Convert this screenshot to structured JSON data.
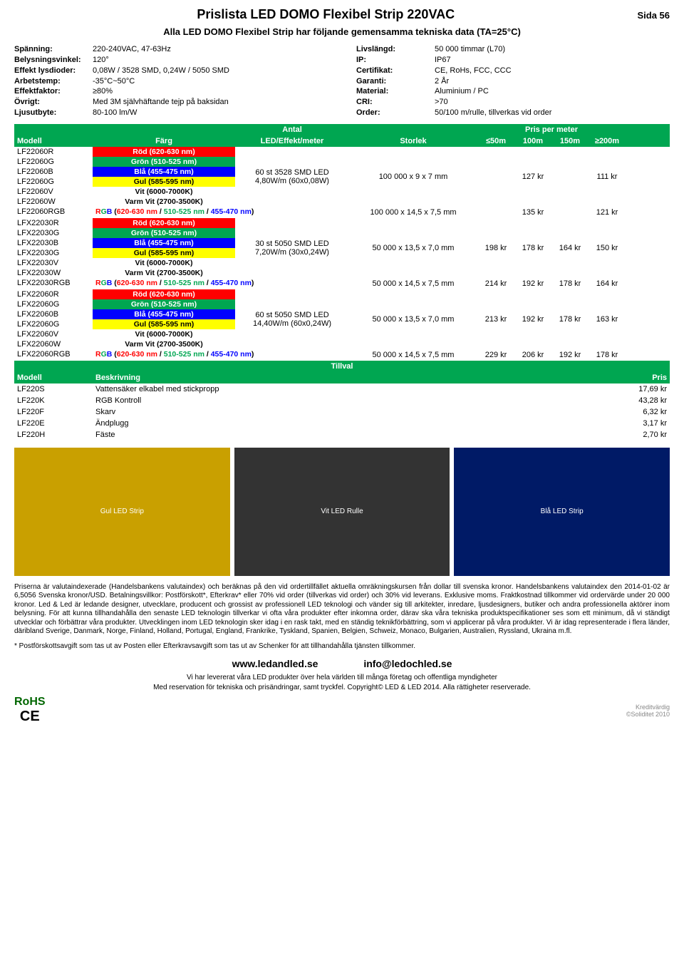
{
  "header": {
    "title": "Prislista LED DOMO Flexibel Strip 220VAC",
    "sida": "Sida 56",
    "subtitle": "Alla LED DOMO Flexibel Strip har följande gemensamma tekniska data (TA=25°C)"
  },
  "specs_left": [
    {
      "label": "Spänning:",
      "value": "220-240VAC, 47-63Hz"
    },
    {
      "label": "Belysningsvinkel:",
      "value": "120°"
    },
    {
      "label": "Effekt lysdioder:",
      "value": "0,08W / 3528 SMD, 0,24W / 5050 SMD"
    },
    {
      "label": "Arbetstemp:",
      "value": "-35°C~50°C"
    },
    {
      "label": "Effektfaktor:",
      "value": "≥80%"
    },
    {
      "label": "Övrigt:",
      "value": "Med 3M självhäftande tejp på baksidan"
    },
    {
      "label": "Ljusutbyte:",
      "value": "80-100 lm/W"
    }
  ],
  "specs_right": [
    {
      "label": "Livslängd:",
      "value": "50 000 timmar (L70)"
    },
    {
      "label": "IP:",
      "value": "IP67"
    },
    {
      "label": "Certifikat:",
      "value": "CE, RoHs, FCC, CCC"
    },
    {
      "label": "Garanti:",
      "value": "2 År"
    },
    {
      "label": "Material:",
      "value": "Aluminium / PC"
    },
    {
      "label": "CRI:",
      "value": ">70"
    },
    {
      "label": "Order:",
      "value": "50/100 m/rulle, tillverkas vid order"
    }
  ],
  "table_headers": {
    "antal": "Antal",
    "ppm": "Pris per meter",
    "modell": "Modell",
    "farg": "Färg",
    "led": "LED/Effekt/meter",
    "storlek": "Storlek",
    "p50": "≤50m",
    "p100": "100m",
    "p150": "150m",
    "p200": "≥200m"
  },
  "colors": {
    "red": {
      "bg": "#ff0000",
      "fg": "#ffffff"
    },
    "green": {
      "bg": "#00a651",
      "fg": "#ffffff"
    },
    "blue": {
      "bg": "#0000ff",
      "fg": "#ffffff"
    },
    "yellow": {
      "bg": "#ffff00",
      "fg": "#000000"
    },
    "white": {
      "bg": "#ffffff",
      "fg": "#000000"
    },
    "warmwhite": {
      "bg": "#ffffff",
      "fg": "#000000"
    }
  },
  "groups": [
    {
      "rows": [
        {
          "model": "LF22060R",
          "color": "red",
          "label": "Röd (620-630 nm)"
        },
        {
          "model": "LF22060G",
          "color": "green",
          "label": "Grön (510-525 nm)"
        },
        {
          "model": "LF22060B",
          "color": "blue",
          "label": "Blå (455-475 nm)"
        },
        {
          "model": "LF22060G",
          "color": "yellow",
          "label": "Gul (585-595 nm)"
        },
        {
          "model": "LF22060V",
          "color": "white",
          "label": "Vit (6000-7000K)"
        },
        {
          "model": "LF22060W",
          "color": "warmwhite",
          "label": "Varm Vit (2700-3500K)"
        }
      ],
      "effekt_l1": "60 st 3528 SMD LED",
      "effekt_l2": "4,80W/m (60x0,08W)",
      "storlek": "100 000 x 9 x 7 mm",
      "prices": {
        "p50": "",
        "p100": "127 kr",
        "p150": "",
        "p200": "111 kr"
      },
      "rgb": {
        "model": "LF22060RGB",
        "label": "RGB (620-630 nm / 510-525 nm / 455-470 nm)",
        "storlek": "100 000 x 14,5 x 7,5  mm",
        "prices": {
          "p50": "",
          "p100": "135 kr",
          "p150": "",
          "p200": "121 kr"
        }
      }
    },
    {
      "rows": [
        {
          "model": "LFX22030R",
          "color": "red",
          "label": "Röd (620-630 nm)"
        },
        {
          "model": "LFX22030G",
          "color": "green",
          "label": "Grön (510-525 nm)"
        },
        {
          "model": "LFX22030B",
          "color": "blue",
          "label": "Blå (455-475 nm)"
        },
        {
          "model": "LFX22030G",
          "color": "yellow",
          "label": "Gul (585-595 nm)"
        },
        {
          "model": "LFX22030V",
          "color": "white",
          "label": "Vit (6000-7000K)"
        },
        {
          "model": "LFX22030W",
          "color": "warmwhite",
          "label": "Varm Vit (2700-3500K)"
        }
      ],
      "effekt_l1": "30 st 5050 SMD LED",
      "effekt_l2": "7,20W/m (30x0,24W)",
      "storlek": "50 000 x 13,5 x 7,0 mm",
      "prices": {
        "p50": "198 kr",
        "p100": "178 kr",
        "p150": "164 kr",
        "p200": "150 kr"
      },
      "rgb": {
        "model": "LFX22030RGB",
        "label": "RGB (620-630 nm / 510-525 nm / 455-470 nm)",
        "storlek": "50 000 x 14,5 x 7,5 mm",
        "prices": {
          "p50": "214 kr",
          "p100": "192 kr",
          "p150": "178 kr",
          "p200": "164 kr"
        }
      }
    },
    {
      "rows": [
        {
          "model": "LFX22060R",
          "color": "red",
          "label": "Röd (620-630 nm)"
        },
        {
          "model": "LFX22060G",
          "color": "green",
          "label": "Grön (510-525 nm)"
        },
        {
          "model": "LFX22060B",
          "color": "blue",
          "label": "Blå (455-475 nm)"
        },
        {
          "model": "LFX22060G",
          "color": "yellow",
          "label": "Gul (585-595 nm)"
        },
        {
          "model": "LFX22060V",
          "color": "white",
          "label": "Vit (6000-7000K)"
        },
        {
          "model": "LFX22060W",
          "color": "warmwhite",
          "label": "Varm Vit (2700-3500K)"
        }
      ],
      "effekt_l1": "60 st 5050 SMD LED",
      "effekt_l2": "14,40W/m (60x0,24W)",
      "storlek": "50 000 x 13,5 x 7,0 mm",
      "prices": {
        "p50": "213 kr",
        "p100": "192 kr",
        "p150": "178 kr",
        "p200": "163 kr"
      },
      "rgb": {
        "model": "LFX22060RGB",
        "label": "RGB (620-630 nm / 510-525 nm / 455-470 nm)",
        "storlek": "50 000 x 14,5 x 7,5 mm",
        "prices": {
          "p50": "229 kr",
          "p100": "206 kr",
          "p150": "192 kr",
          "p200": "178 kr"
        }
      }
    }
  ],
  "tillval": {
    "title": "Tillval",
    "modell": "Modell",
    "beskrivning": "Beskrivning",
    "pris": "Pris",
    "rows": [
      {
        "model": "LF220S",
        "desc": "Vattensäker elkabel med stickpropp",
        "pris": "17,69 kr"
      },
      {
        "model": "LF220K",
        "desc": "RGB Kontroll",
        "pris": "43,28 kr"
      },
      {
        "model": "LF220F",
        "desc": "Skarv",
        "pris": "6,32 kr"
      },
      {
        "model": "LF220E",
        "desc": "Ändplugg",
        "pris": "3,17 kr"
      },
      {
        "model": "LF220H",
        "desc": "Fäste",
        "pris": "2,70 kr"
      }
    ]
  },
  "images": [
    {
      "bg": "#c9a000",
      "label": "Gul LED Strip"
    },
    {
      "bg": "#333333",
      "label": "Vit LED Rulle"
    },
    {
      "bg": "#001a66",
      "label": "Blå LED Strip"
    }
  ],
  "fine1": "Priserna är valutaindexerade (Handelsbankens valutaindex) och beräknas på den vid ordertillfället aktuella omräkningskursen från dollar till svenska kronor. Handelsbankens valutaindex den 2014-01-02 är 6,5056 Svenska kronor/USD. Betalningsvillkor: Postförskott*, Efterkrav* eller 70% vid order (tillverkas vid order) och 30% vid leverans. Exklusive moms. Fraktkostnad tillkommer vid ordervärde under 20 000 kronor. Led & Led är ledande designer, utvecklare, producent och grossist av professionell LED teknologi och vänder sig till arkitekter, inredare, ljusdesigners, butiker och andra professionella aktörer inom belysning. För att kunna tillhandahålla den senaste LED teknologin tillverkar vi ofta våra produkter efter inkomna order, därav ska våra tekniska produktspecifikationer ses som ett minimum, då vi ständigt utvecklar och förbättrar våra produkter. Utvecklingen inom LED teknologin sker idag i en rask takt, med en ständig teknikförbättring, som vi applicerar på våra produkter. Vi är idag representerade i flera länder, däribland Sverige, Danmark, Norge, Finland, Holland, Portugal, England, Frankrike, Tyskland, Spanien, Belgien, Schweiz, Monaco, Bulgarien, Australien, Ryssland, Ukraina m.fl.",
  "fine2": "* Postförskottsavgift som tas ut av Posten eller Efterkravsavgift som tas ut av Schenker för att tillhandahålla tjänsten tillkommer.",
  "footer": {
    "url": "www.ledandled.se",
    "email": "info@ledochled.se",
    "line1": "Vi har levererat våra LED produkter över hela världen till många företag och offentliga myndigheter",
    "line2": "Med reservation för tekniska och prisändringar, samt tryckfel. Copyright© LED & LED 2014. Alla rättigheter reserverade.",
    "rohs": "RoHS",
    "ce": "CE",
    "kred1": "Kreditvärdig",
    "kred2": "©Soliditet 2010"
  }
}
